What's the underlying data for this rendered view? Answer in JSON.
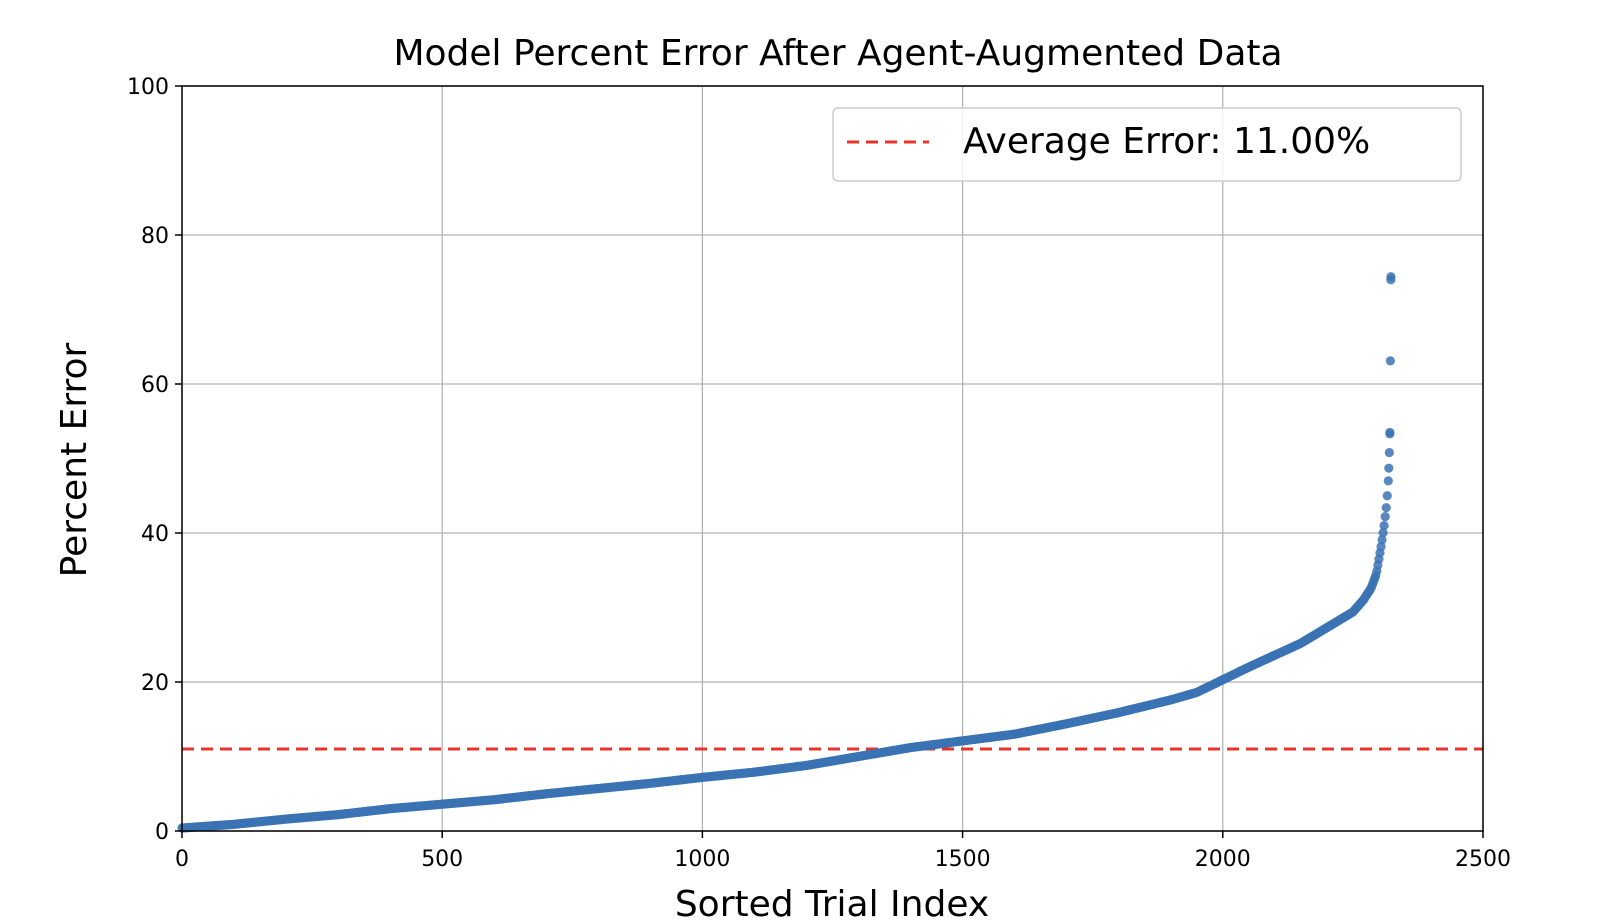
{
  "chart_data": {
    "type": "scatter",
    "title": "Model Percent Error After Agent-Augmented Data",
    "xlabel": "Sorted Trial Index",
    "ylabel": "Percent Error",
    "xlim": [
      0,
      2500
    ],
    "ylim": [
      0,
      100
    ],
    "xticks": [
      0,
      500,
      1000,
      1500,
      2000,
      2500
    ],
    "xtick_labels": [
      "0",
      "500",
      "1000",
      "1500",
      "2000",
      "2500"
    ],
    "yticks": [
      0,
      20,
      40,
      60,
      80,
      100
    ],
    "ytick_labels": [
      "0",
      "20",
      "40",
      "60",
      "80",
      "100"
    ],
    "grid": true,
    "legend_position": "top-right",
    "series": [
      {
        "type": "scatter",
        "color": "#3b73b4",
        "curve_points": [
          [
            0,
            0.4
          ],
          [
            100,
            0.9
          ],
          [
            200,
            1.6
          ],
          [
            300,
            2.2
          ],
          [
            400,
            3.0
          ],
          [
            500,
            3.6
          ],
          [
            600,
            4.2
          ],
          [
            700,
            5.0
          ],
          [
            800,
            5.7
          ],
          [
            900,
            6.4
          ],
          [
            1000,
            7.2
          ],
          [
            1100,
            7.9
          ],
          [
            1200,
            8.8
          ],
          [
            1300,
            10.0
          ],
          [
            1400,
            11.2
          ],
          [
            1500,
            12.1
          ],
          [
            1600,
            13.0
          ],
          [
            1700,
            14.4
          ],
          [
            1800,
            15.9
          ],
          [
            1900,
            17.6
          ],
          [
            1950,
            18.6
          ],
          [
            2000,
            20.3
          ],
          [
            2050,
            22.0
          ],
          [
            2100,
            23.6
          ],
          [
            2150,
            25.2
          ],
          [
            2200,
            27.3
          ],
          [
            2250,
            29.4
          ],
          [
            2270,
            31.0
          ],
          [
            2285,
            32.6
          ],
          [
            2295,
            34.5
          ],
          [
            2300,
            36.5
          ],
          [
            2305,
            38.6
          ],
          [
            2310,
            41.0
          ],
          [
            2315,
            44.0
          ],
          [
            2318,
            47.0
          ]
        ],
        "outliers": [
          [
            2319,
            48.7
          ],
          [
            2320,
            50.8
          ],
          [
            2321,
            53.3
          ],
          [
            2321,
            53.5
          ],
          [
            2322,
            63.1
          ],
          [
            2323,
            74.0
          ],
          [
            2323,
            74.4
          ]
        ]
      },
      {
        "type": "hline",
        "name": "Average Error: 11.00%",
        "y": 11.0,
        "color": "#e8332a"
      }
    ]
  }
}
